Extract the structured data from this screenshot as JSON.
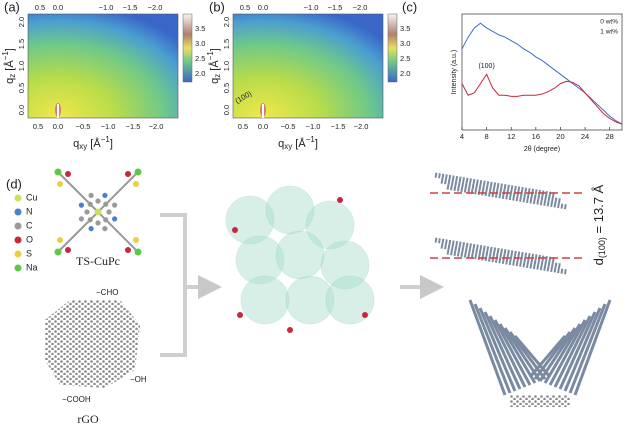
{
  "panels": [
    {
      "label": "(a)",
      "top_ticks": [
        "0.5",
        "0.0",
        "−1.0",
        "−1.5",
        "−2.0"
      ],
      "left_ticks": [
        "0.0",
        "0.5",
        "1.0",
        "1.5",
        "2.0"
      ],
      "bottom_ticks": [
        "0.5",
        "0.0",
        "−0.5",
        "−1.0",
        "−1.5",
        "−2.0"
      ],
      "colorbar_ticks": [
        "2.0",
        "2.5",
        "3.0",
        "3.5"
      ],
      "y_label": {
        "q": "q",
        "sub": "z",
        "unit": " [Å",
        "sup": "−1",
        "end": "]"
      },
      "x_label": {
        "q": "q",
        "sub": "xy",
        "unit": " [Å",
        "sup": "−1",
        "end": "]"
      }
    },
    {
      "label": "(b)",
      "top_ticks": [
        "0.5",
        "0.0",
        "−1.0",
        "−1.5",
        "−2.0"
      ],
      "left_ticks": [
        "0.0",
        "0.5",
        "1.0",
        "1.5",
        "2.0"
      ],
      "bottom_ticks": [
        "0.5",
        "0.0",
        "−0.5",
        "−1.0",
        "−1.5",
        "−2.0"
      ],
      "colorbar_ticks": [
        "2.0",
        "2.5",
        "3.0",
        "3.5"
      ],
      "y_label": {
        "q": "q",
        "sub": "z",
        "unit": " [Å",
        "sup": "−1",
        "end": "]"
      },
      "x_label": {
        "q": "q",
        "sub": "xy",
        "unit": " [Å",
        "sup": "−1",
        "end": "]"
      },
      "annotation": "(100)"
    }
  ],
  "chart_data": {
    "label": "(c)",
    "type": "line",
    "y_label": "Intensity (a.u.)",
    "x_label": "2θ (degree)",
    "annotation": "(100)",
    "x": [
      4,
      5,
      6,
      7,
      8,
      9,
      10,
      11,
      12,
      13,
      14,
      15,
      16,
      17,
      18,
      19,
      20,
      21,
      22,
      23,
      24,
      25,
      26,
      27,
      28,
      29,
      30
    ],
    "series": [
      {
        "name": "0 wt%",
        "color": "#3a6fc4",
        "values": [
          70,
          80,
          88,
          92,
          88,
          85,
          82,
          80,
          77,
          74,
          70,
          67,
          63,
          60,
          56,
          52,
          48,
          44,
          40,
          36,
          32,
          27,
          22,
          17,
          12,
          8,
          5
        ]
      },
      {
        "name": "1 wt%",
        "color": "#c8283c",
        "values": [
          40,
          30,
          32,
          40,
          48,
          36,
          30,
          30,
          29,
          29,
          30,
          30,
          30,
          31,
          33,
          36,
          40,
          42,
          41,
          38,
          32,
          26,
          20,
          14,
          10,
          7,
          5
        ]
      }
    ],
    "xlim": [
      4,
      30
    ],
    "xticks": [
      4,
      8,
      12,
      16,
      20,
      24,
      28
    ],
    "ylim": [
      0,
      100
    ]
  },
  "diagram": {
    "label": "(d)",
    "elements": [
      {
        "symbol": "Cu",
        "color": "#c9e35a"
      },
      {
        "symbol": "N",
        "color": "#4a7fd0"
      },
      {
        "symbol": "C",
        "color": "#9a9a9a"
      },
      {
        "symbol": "O",
        "color": "#c8283c"
      },
      {
        "symbol": "S",
        "color": "#e8d040"
      },
      {
        "symbol": "Na",
        "color": "#5cc84a"
      }
    ],
    "molecule_label": "TS-CuPc",
    "substrate_label": "rGO",
    "groups": [
      "−CHO",
      "−OH",
      "−COOH"
    ],
    "spacing": {
      "d": "d",
      "sub": "(100)",
      "rest": " = 13.7 Å"
    }
  }
}
